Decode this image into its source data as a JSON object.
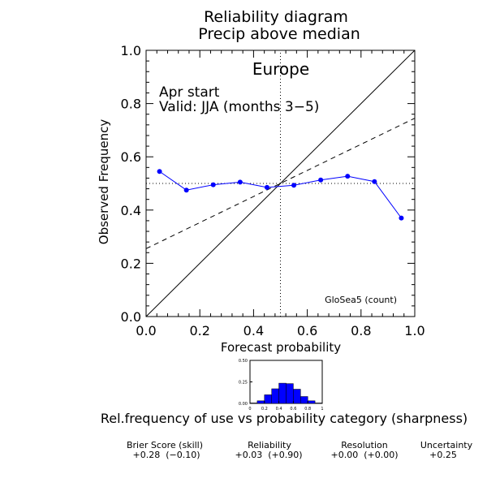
{
  "chart_data": {
    "type": "scatter",
    "title": "Reliability diagram",
    "subtitle": "Precip above median",
    "region": "Europe",
    "start_note": "Apr start",
    "valid_note": "Valid: JJA (months 3−5)",
    "source_note": "GloSea5 (count)",
    "xlabel": "Forecast probability",
    "ylabel": "Observed Frequency",
    "xlim": [
      0.0,
      1.0
    ],
    "ylim": [
      0.0,
      1.0
    ],
    "x_ticks": [
      "0.0",
      "0.2",
      "0.4",
      "0.6",
      "0.8",
      "1.0"
    ],
    "y_ticks": [
      "0.0",
      "0.2",
      "0.4",
      "0.6",
      "0.8",
      "1.0"
    ],
    "reference_lines": {
      "diagonal": [
        [
          0,
          0
        ],
        [
          1,
          1
        ]
      ],
      "regression_dashed": [
        [
          0,
          0.255
        ],
        [
          1,
          0.745
        ]
      ],
      "climatology_vertical_x": 0.5,
      "climatology_horizontal_y": 0.5
    },
    "series": [
      {
        "color": "#0000ff",
        "x": [
          0.05,
          0.15,
          0.25,
          0.35,
          0.45,
          0.55,
          0.65,
          0.75,
          0.85,
          0.95
        ],
        "y": [
          0.545,
          0.475,
          0.495,
          0.505,
          0.485,
          0.493,
          0.513,
          0.527,
          0.507,
          0.37
        ]
      }
    ],
    "sharpness": {
      "type": "bar",
      "caption": "Rel.frequency of use vs probability category (sharpness)",
      "color": "#0000ff",
      "x_ticks": [
        "0",
        "0.2",
        "0.4",
        "0.6",
        "0.8",
        "1"
      ],
      "y_ticks": [
        "0.00",
        "0.25",
        "0.50"
      ],
      "ylim": [
        0,
        0.5
      ],
      "categories": [
        0.05,
        0.15,
        0.25,
        0.35,
        0.45,
        0.55,
        0.65,
        0.75,
        0.85,
        0.95
      ],
      "values": [
        0.005,
        0.03,
        0.1,
        0.17,
        0.235,
        0.23,
        0.165,
        0.08,
        0.03,
        0.005
      ]
    }
  },
  "scores": {
    "brier": {
      "label": "Brier Score (skill)",
      "value": "+0.28  (−0.10)"
    },
    "reliability": {
      "label": "Reliability",
      "value": "+0.03  (+0.90)"
    },
    "resolution": {
      "label": "Resolution",
      "value": "+0.00  (+0.00)"
    },
    "uncertainty": {
      "label": "Uncertainty",
      "value": "+0.25"
    }
  }
}
